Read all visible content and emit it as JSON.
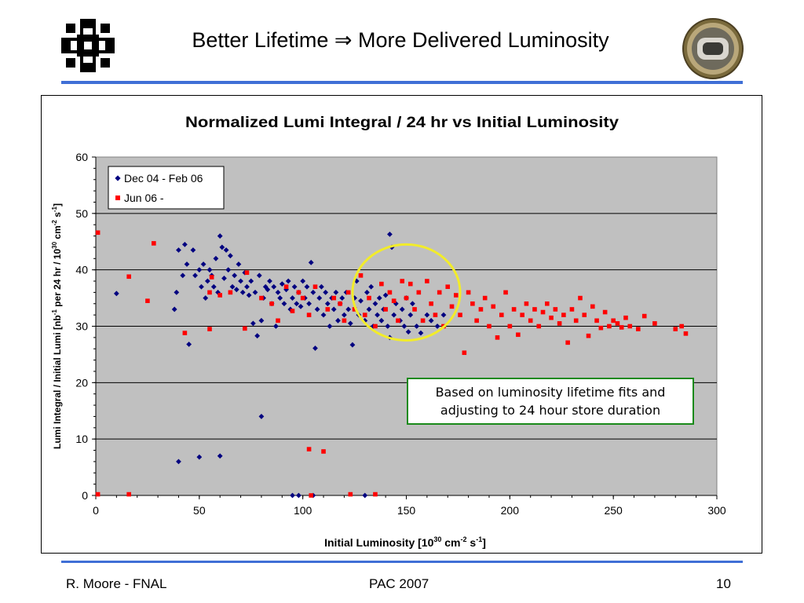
{
  "slide": {
    "title": "Better Lifetime ⇒ More Delivered Luminosity",
    "footer_left": "R. Moore - FNAL",
    "footer_center": "PAC 2007",
    "footer_right": "10",
    "callout": {
      "line1": "Based on luminosity lifetime fits and",
      "line2": "adjusting to 24 hour store duration"
    },
    "icons": {
      "left": "fermilab-logo",
      "right": "cavity-badge-image"
    },
    "colors": {
      "rule": "#3f6fd6",
      "callout_border": "#1a8a1a",
      "highlight_circle": "#f2ec2a"
    }
  },
  "chart_data": {
    "type": "scatter",
    "title": "Normalized Lumi Integral / 24 hr  vs  Initial Luminosity",
    "xlabel": "Initial Luminosity  [10^30 cm^-2 s^-1]",
    "ylabel": "Lumi Integral / Initial Lumi  [nb^-1 per 24 hr / 10^30 cm^-2 s^-1]",
    "xlim": [
      0,
      300
    ],
    "ylim": [
      0,
      60
    ],
    "x_ticks": [
      "0",
      "50",
      "100",
      "150",
      "200",
      "250",
      "300"
    ],
    "y_ticks": [
      "0",
      "10",
      "20",
      "30",
      "40",
      "50",
      "60"
    ],
    "grid": "horizontal major",
    "plot_background": "#c0c0c0",
    "legend_position": "top-left",
    "highlight_circle": {
      "center": [
        150,
        36
      ],
      "radius_x": 26,
      "radius_y": 8.5
    },
    "series": [
      {
        "name": "Dec 04 - Feb 06",
        "marker": "diamond",
        "color": "#000080",
        "points": [
          [
            10,
            35.8
          ],
          [
            38,
            33
          ],
          [
            39,
            36
          ],
          [
            40,
            43.5
          ],
          [
            40,
            6
          ],
          [
            42,
            39
          ],
          [
            43,
            44.5
          ],
          [
            44,
            41
          ],
          [
            45,
            26.8
          ],
          [
            47,
            43.5
          ],
          [
            48,
            39
          ],
          [
            50,
            40
          ],
          [
            50,
            6.8
          ],
          [
            51,
            37
          ],
          [
            52,
            41
          ],
          [
            53,
            35
          ],
          [
            54,
            38
          ],
          [
            55,
            40
          ],
          [
            56,
            39
          ],
          [
            57,
            37
          ],
          [
            58,
            42
          ],
          [
            59,
            36
          ],
          [
            60,
            46
          ],
          [
            60,
            7
          ],
          [
            61,
            44
          ],
          [
            62,
            38.5
          ],
          [
            63,
            43.5
          ],
          [
            64,
            40
          ],
          [
            65,
            42.5
          ],
          [
            66,
            37
          ],
          [
            67,
            39
          ],
          [
            68,
            36.5
          ],
          [
            69,
            41
          ],
          [
            70,
            38
          ],
          [
            71,
            36
          ],
          [
            72,
            39.5
          ],
          [
            73,
            37
          ],
          [
            74,
            35.5
          ],
          [
            75,
            38
          ],
          [
            76,
            30.5
          ],
          [
            77,
            36
          ],
          [
            78,
            28.3
          ],
          [
            79,
            39
          ],
          [
            80,
            14
          ],
          [
            80,
            31
          ],
          [
            81,
            35
          ],
          [
            82,
            37
          ],
          [
            83,
            36.5
          ],
          [
            84,
            38
          ],
          [
            85,
            34
          ],
          [
            86,
            37
          ],
          [
            87,
            30
          ],
          [
            88,
            36
          ],
          [
            89,
            35
          ],
          [
            90,
            37.5
          ],
          [
            91,
            34
          ],
          [
            92,
            36.5
          ],
          [
            93,
            38
          ],
          [
            94,
            33
          ],
          [
            95,
            35
          ],
          [
            96,
            37
          ],
          [
            97,
            34
          ],
          [
            98,
            36
          ],
          [
            99,
            33.5
          ],
          [
            100,
            38
          ],
          [
            101,
            35
          ],
          [
            102,
            37
          ],
          [
            103,
            34
          ],
          [
            104,
            41.3
          ],
          [
            105,
            36
          ],
          [
            106,
            26.1
          ],
          [
            107,
            33
          ],
          [
            108,
            35
          ],
          [
            109,
            37
          ],
          [
            110,
            32
          ],
          [
            111,
            36
          ],
          [
            112,
            34
          ],
          [
            113,
            30
          ],
          [
            114,
            35
          ],
          [
            115,
            33
          ],
          [
            116,
            36
          ],
          [
            117,
            31
          ],
          [
            118,
            34
          ],
          [
            119,
            35
          ],
          [
            120,
            32
          ],
          [
            121,
            36
          ],
          [
            122,
            33
          ],
          [
            123,
            30.5
          ],
          [
            124,
            26.7
          ],
          [
            125,
            35
          ],
          [
            126,
            38
          ],
          [
            127,
            32
          ],
          [
            128,
            34.5
          ],
          [
            130,
            31
          ],
          [
            131,
            36
          ],
          [
            132,
            33
          ],
          [
            133,
            37
          ],
          [
            134,
            30
          ],
          [
            135,
            34
          ],
          [
            136,
            32
          ],
          [
            137,
            35
          ],
          [
            138,
            31
          ],
          [
            139,
            33
          ],
          [
            140,
            35.5
          ],
          [
            141,
            30
          ],
          [
            142,
            46.3
          ],
          [
            142,
            28
          ],
          [
            143,
            44
          ],
          [
            144,
            32
          ],
          [
            145,
            34
          ],
          [
            147,
            31
          ],
          [
            148,
            33
          ],
          [
            149,
            30
          ],
          [
            150,
            35
          ],
          [
            151,
            29
          ],
          [
            152,
            32
          ],
          [
            153,
            34
          ],
          [
            155,
            30
          ],
          [
            157,
            28.8
          ],
          [
            160,
            32
          ],
          [
            162,
            31
          ],
          [
            165,
            30
          ],
          [
            168,
            32
          ],
          [
            95,
            0
          ],
          [
            98,
            0
          ],
          [
            105,
            0
          ],
          [
            130,
            0
          ]
        ]
      },
      {
        "name": "Jun 06 -",
        "marker": "square",
        "color": "#ff0000",
        "points": [
          [
            1,
            46.6
          ],
          [
            1,
            0.2
          ],
          [
            16,
            38.8
          ],
          [
            16,
            0.2
          ],
          [
            25,
            34.5
          ],
          [
            28,
            44.7
          ],
          [
            43,
            28.8
          ],
          [
            55,
            29.5
          ],
          [
            55,
            36
          ],
          [
            56,
            38.7
          ],
          [
            60,
            35.5
          ],
          [
            65,
            36
          ],
          [
            72,
            29.6
          ],
          [
            73,
            39.5
          ],
          [
            80,
            35
          ],
          [
            85,
            34
          ],
          [
            88,
            31
          ],
          [
            92,
            37
          ],
          [
            95,
            32.7
          ],
          [
            98,
            36
          ],
          [
            100,
            35
          ],
          [
            103,
            32
          ],
          [
            103,
            8.2
          ],
          [
            104,
            0
          ],
          [
            106,
            37
          ],
          [
            110,
            7.8
          ],
          [
            112,
            33
          ],
          [
            115,
            35
          ],
          [
            118,
            34
          ],
          [
            120,
            31
          ],
          [
            122,
            36
          ],
          [
            123,
            0.2
          ],
          [
            125,
            33
          ],
          [
            128,
            39
          ],
          [
            130,
            32
          ],
          [
            132,
            35
          ],
          [
            135,
            30
          ],
          [
            135,
            0.2
          ],
          [
            138,
            37.5
          ],
          [
            140,
            33
          ],
          [
            142,
            36
          ],
          [
            144,
            34.5
          ],
          [
            146,
            31
          ],
          [
            148,
            38
          ],
          [
            150,
            35
          ],
          [
            152,
            37.5
          ],
          [
            154,
            33
          ],
          [
            156,
            36
          ],
          [
            158,
            31
          ],
          [
            160,
            38
          ],
          [
            162,
            34
          ],
          [
            164,
            32
          ],
          [
            166,
            36
          ],
          [
            168,
            30
          ],
          [
            170,
            37
          ],
          [
            172,
            33.5
          ],
          [
            174,
            35.5
          ],
          [
            176,
            32
          ],
          [
            178,
            25.3
          ],
          [
            180,
            36
          ],
          [
            182,
            34
          ],
          [
            184,
            31
          ],
          [
            186,
            33
          ],
          [
            188,
            35
          ],
          [
            190,
            30
          ],
          [
            192,
            33.5
          ],
          [
            194,
            28
          ],
          [
            196,
            32
          ],
          [
            198,
            36
          ],
          [
            200,
            30
          ],
          [
            202,
            33
          ],
          [
            204,
            28.5
          ],
          [
            206,
            32
          ],
          [
            208,
            34
          ],
          [
            210,
            31
          ],
          [
            212,
            33
          ],
          [
            214,
            30
          ],
          [
            216,
            32.5
          ],
          [
            218,
            34
          ],
          [
            220,
            31.5
          ],
          [
            222,
            33
          ],
          [
            224,
            30.5
          ],
          [
            226,
            32
          ],
          [
            228,
            27.1
          ],
          [
            230,
            33
          ],
          [
            232,
            31
          ],
          [
            234,
            35
          ],
          [
            236,
            32
          ],
          [
            238,
            28.3
          ],
          [
            240,
            33.5
          ],
          [
            242,
            31
          ],
          [
            244,
            29.7
          ],
          [
            246,
            32.5
          ],
          [
            248,
            30
          ],
          [
            250,
            31
          ],
          [
            252,
            30.5
          ],
          [
            254,
            29.8
          ],
          [
            256,
            31.5
          ],
          [
            258,
            30
          ],
          [
            262,
            29.5
          ],
          [
            265,
            31.8
          ],
          [
            270,
            30.5
          ],
          [
            280,
            29.5
          ],
          [
            283,
            30
          ],
          [
            285,
            28.7
          ]
        ]
      }
    ]
  }
}
